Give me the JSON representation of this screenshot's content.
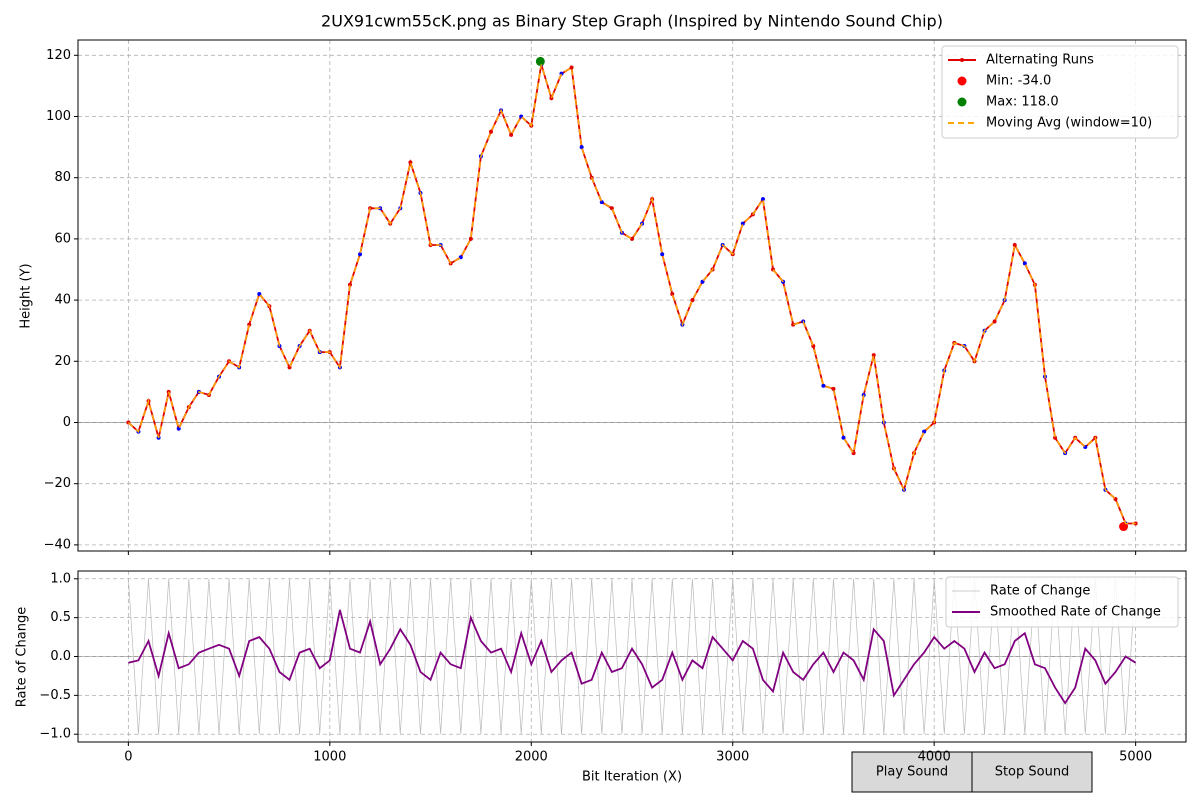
{
  "chart_data": [
    {
      "type": "line",
      "title": "2UX91cwm55cK.png as Binary Step Graph (Inspired by Nintendo Sound Chip)",
      "ylabel": "Height (Y)",
      "xlim": [
        -250,
        5250
      ],
      "ylim": [
        -42,
        125
      ],
      "xticks": [
        0,
        1000,
        2000,
        3000,
        4000,
        5000
      ],
      "yticks": [
        {
          "value": -40,
          "label": "−40"
        },
        {
          "value": -20,
          "label": "−20"
        },
        0,
        20,
        40,
        60,
        80,
        100,
        120
      ],
      "grid": true,
      "hline": 0,
      "legend": "upper right",
      "x": [
        0,
        50,
        100,
        150,
        200,
        250,
        300,
        350,
        400,
        450,
        500,
        550,
        600,
        650,
        700,
        750,
        800,
        850,
        900,
        950,
        1000,
        1050,
        1100,
        1150,
        1200,
        1250,
        1300,
        1350,
        1400,
        1450,
        1500,
        1550,
        1600,
        1650,
        1700,
        1750,
        1800,
        1850,
        1900,
        1950,
        2000,
        2050,
        2100,
        2150,
        2200,
        2250,
        2300,
        2350,
        2400,
        2450,
        2500,
        2550,
        2600,
        2650,
        2700,
        2750,
        2800,
        2850,
        2900,
        2950,
        3000,
        3050,
        3100,
        3150,
        3200,
        3250,
        3300,
        3350,
        3400,
        3450,
        3500,
        3550,
        3600,
        3650,
        3700,
        3750,
        3800,
        3850,
        3900,
        3950,
        4000,
        4050,
        4100,
        4150,
        4200,
        4250,
        4300,
        4350,
        4400,
        4450,
        4500,
        4550,
        4600,
        4650,
        4700,
        4750,
        4800,
        4850,
        4900,
        4950,
        5000
      ],
      "series": [
        {
          "name": "Alternating Runs",
          "color": "#e00000",
          "marker_color": "#0000ff",
          "style": "line-markers",
          "values": [
            0,
            -3,
            7,
            -5,
            10,
            -2,
            5,
            10,
            9,
            15,
            20,
            18,
            32,
            42,
            38,
            25,
            18,
            25,
            30,
            23,
            23,
            18,
            45,
            55,
            70,
            70,
            65,
            70,
            85,
            75,
            58,
            58,
            52,
            54,
            60,
            87,
            95,
            102,
            94,
            100,
            97,
            117,
            106,
            114,
            116,
            90,
            80,
            72,
            70,
            62,
            60,
            65,
            73,
            55,
            42,
            32,
            40,
            46,
            50,
            58,
            55,
            65,
            68,
            73,
            50,
            46,
            32,
            33,
            25,
            12,
            11,
            -5,
            -10,
            9,
            22,
            0,
            -15,
            -22,
            -10,
            -3,
            0,
            17,
            26,
            25,
            20,
            30,
            33,
            40,
            58,
            52,
            45,
            15,
            -5,
            -10,
            -5,
            -8,
            -5,
            -22,
            -25,
            -33,
            -33
          ]
        },
        {
          "name": "Min: -34.0",
          "color": "#ff0000",
          "style": "points",
          "x": [
            4940
          ],
          "values": [
            -34
          ]
        },
        {
          "name": "Max: 118.0",
          "color": "#008000",
          "style": "points",
          "x": [
            2045
          ],
          "values": [
            118
          ]
        },
        {
          "name": "Moving Avg (window=10)",
          "color": "#ffa500",
          "style": "dashed",
          "values": [
            0,
            -3,
            7,
            -5,
            10,
            -2,
            5,
            10,
            9,
            15,
            20,
            18,
            32,
            42,
            38,
            25,
            18,
            25,
            30,
            23,
            23,
            18,
            45,
            55,
            70,
            70,
            65,
            70,
            85,
            75,
            58,
            58,
            52,
            54,
            60,
            87,
            95,
            102,
            94,
            100,
            97,
            117,
            106,
            114,
            116,
            90,
            80,
            72,
            70,
            62,
            60,
            65,
            73,
            55,
            42,
            32,
            40,
            46,
            50,
            58,
            55,
            65,
            68,
            73,
            50,
            46,
            32,
            33,
            25,
            12,
            11,
            -5,
            -10,
            9,
            22,
            0,
            -15,
            -22,
            -10,
            -3,
            0,
            17,
            26,
            25,
            20,
            30,
            33,
            40,
            58,
            52,
            45,
            15,
            -5,
            -10,
            -5,
            -8,
            -5,
            -22,
            -25,
            -33,
            -33
          ]
        }
      ]
    },
    {
      "type": "line",
      "xlabel": "Bit Iteration (X)",
      "ylabel": "Rate of Change",
      "xlim": [
        -250,
        5250
      ],
      "ylim": [
        -1.1,
        1.1
      ],
      "xticks": [
        0,
        1000,
        2000,
        3000,
        4000,
        5000
      ],
      "yticks": [
        {
          "value": -1,
          "label": "−1.0"
        },
        {
          "value": -0.5,
          "label": "−0.5"
        },
        {
          "value": 0,
          "label": "0.0"
        },
        0.5,
        {
          "value": 1,
          "label": "1.0"
        }
      ],
      "grid": true,
      "hline": 0,
      "legend": "upper right",
      "x": [
        0,
        50,
        100,
        150,
        200,
        250,
        300,
        350,
        400,
        450,
        500,
        550,
        600,
        650,
        700,
        750,
        800,
        850,
        900,
        950,
        1000,
        1050,
        1100,
        1150,
        1200,
        1250,
        1300,
        1350,
        1400,
        1450,
        1500,
        1550,
        1600,
        1650,
        1700,
        1750,
        1800,
        1850,
        1900,
        1950,
        2000,
        2050,
        2100,
        2150,
        2200,
        2250,
        2300,
        2350,
        2400,
        2450,
        2500,
        2550,
        2600,
        2650,
        2700,
        2750,
        2800,
        2850,
        2900,
        2950,
        3000,
        3050,
        3100,
        3150,
        3200,
        3250,
        3300,
        3350,
        3400,
        3450,
        3500,
        3550,
        3600,
        3650,
        3700,
        3750,
        3800,
        3850,
        3900,
        3950,
        4000,
        4050,
        4100,
        4150,
        4200,
        4250,
        4300,
        4350,
        4400,
        4450,
        4500,
        4550,
        4600,
        4650,
        4700,
        4750,
        4800,
        4850,
        4900,
        4950,
        5000
      ],
      "series": [
        {
          "name": "Rate of Change",
          "color": "#bbbbbb",
          "style": "thin",
          "values": [
            1,
            -1,
            1,
            -1,
            1,
            -1,
            1,
            -1,
            1,
            -1,
            1,
            -1,
            1,
            -1,
            1,
            -1,
            1,
            -1,
            1,
            -1,
            1,
            -1,
            1,
            -1,
            1,
            -1,
            1,
            -1,
            1,
            -1,
            1,
            -1,
            1,
            -1,
            1,
            -1,
            1,
            -1,
            1,
            -1,
            1,
            -1,
            1,
            -1,
            1,
            -1,
            1,
            -1,
            1,
            -1,
            1,
            -1,
            1,
            -1,
            1,
            -1,
            1,
            -1,
            1,
            -1,
            1,
            -1,
            1,
            -1,
            1,
            -1,
            1,
            -1,
            1,
            -1,
            1,
            -1,
            1,
            -1,
            1,
            -1,
            1,
            -1,
            1,
            -1,
            1,
            -1,
            1,
            -1,
            1,
            -1,
            1,
            -1,
            1,
            -1,
            1,
            -1,
            1,
            -1,
            1,
            -1,
            1,
            -1,
            1,
            -1,
            1
          ]
        },
        {
          "name": "Smoothed Rate of Change",
          "color": "#800080",
          "style": "line",
          "values": [
            -0.08,
            -0.05,
            0.2,
            -0.25,
            0.3,
            -0.15,
            -0.1,
            0.05,
            0.1,
            0.15,
            0.1,
            -0.25,
            0.2,
            0.25,
            0.1,
            -0.2,
            -0.3,
            0.05,
            0.1,
            -0.15,
            -0.05,
            0.6,
            0.1,
            0.05,
            0.45,
            -0.1,
            0.1,
            0.35,
            0.15,
            -0.2,
            -0.3,
            0.05,
            -0.1,
            -0.15,
            0.5,
            0.2,
            0.05,
            0.1,
            -0.2,
            0.3,
            -0.1,
            0.2,
            -0.2,
            -0.05,
            0.05,
            -0.35,
            -0.3,
            0.05,
            -0.2,
            -0.15,
            0.1,
            -0.1,
            -0.4,
            -0.3,
            0.05,
            -0.3,
            -0.05,
            -0.15,
            0.25,
            0.1,
            -0.05,
            0.2,
            0.1,
            -0.3,
            -0.45,
            0.05,
            -0.2,
            -0.3,
            -0.1,
            0.05,
            -0.2,
            0.05,
            -0.05,
            -0.3,
            0.35,
            0.2,
            -0.5,
            -0.3,
            -0.1,
            0.05,
            0.25,
            0.1,
            0.2,
            0.1,
            -0.2,
            0.05,
            -0.15,
            -0.1,
            0.2,
            0.3,
            -0.1,
            -0.15,
            -0.4,
            -0.6,
            -0.4,
            0.1,
            -0.05,
            -0.35,
            -0.2,
            0,
            -0.08
          ]
        }
      ]
    }
  ],
  "buttons": [
    {
      "label": "Play Sound"
    },
    {
      "label": "Stop Sound"
    }
  ]
}
